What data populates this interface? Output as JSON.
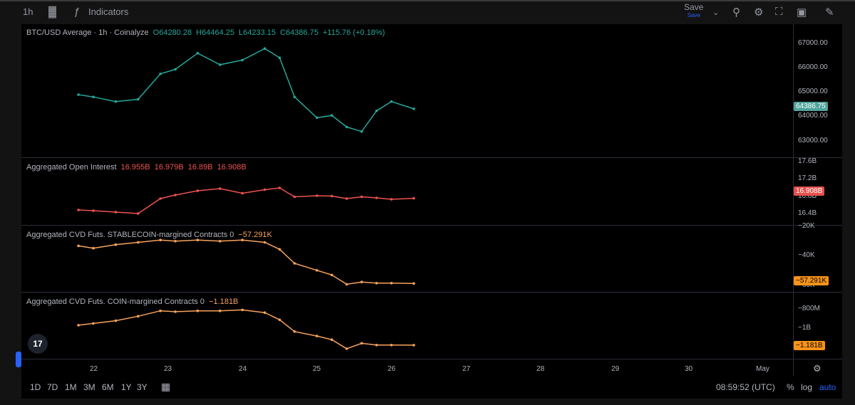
{
  "toolbar": {
    "interval": "1h",
    "indicators_label": "Indicators",
    "save_label": "Save",
    "save_sub": "Save"
  },
  "panels": {
    "price": {
      "title": "BTC/USD Average · 1h · Coinalyze",
      "o": "O64280.28",
      "h": "H64464.25",
      "l": "L64233.15",
      "c": "C64386.75",
      "chg": "+115.76 (+0.18%)",
      "last_tag": "64386.75",
      "ticks": [
        "67000.00",
        "66000.00",
        "65000.00",
        "64000.00",
        "63000.00"
      ]
    },
    "oi": {
      "title": "Aggregated Open Interest",
      "o": "16.955B",
      "h": "16.979B",
      "l": "16.89B",
      "c": "16.908B",
      "last_tag": "16.908B",
      "ticks": [
        "17.6B",
        "17.2B",
        "16.8B",
        "16.4B"
      ]
    },
    "cvd_stable": {
      "title": "Aggregated CVD Futs. STABLECOIN-margined Contracts 0",
      "value": "−57.291K",
      "last_tag": "−57.291K",
      "ticks": [
        "−20K",
        "−40K",
        "−60K"
      ]
    },
    "cvd_coin": {
      "title": "Aggregated CVD Futs. COIN-margined Contracts 0",
      "value": "−1.181B",
      "last_tag": "−1.181B",
      "ticks": [
        "−800M",
        "−1B"
      ]
    }
  },
  "xaxis": [
    "22",
    "23",
    "24",
    "25",
    "26",
    "27",
    "28",
    "29",
    "30",
    "May"
  ],
  "bottom": {
    "ranges": [
      "1D",
      "7D",
      "1M",
      "3M",
      "6M",
      "1Y",
      "3Y"
    ],
    "time": "08:59:52 (UTC)",
    "pct": "%",
    "log": "log",
    "auto": "auto"
  },
  "logo_text": "17",
  "colors": {
    "up": "#26a69a",
    "down": "#ef5350",
    "cvd": "#f7a35c",
    "price_tag": "#4fa39a",
    "oi_tag": "#e5514d",
    "cvd_tag": "#f7931a"
  },
  "chart_data": [
    {
      "type": "line",
      "title": "BTC/USD Average · 1h · Coinalyze",
      "x": [
        "21.8",
        "22.0",
        "22.3",
        "22.6",
        "22.9",
        "23.1",
        "23.4",
        "23.7",
        "24.0",
        "24.3",
        "24.5",
        "24.7",
        "25.0",
        "25.2",
        "25.4",
        "25.6",
        "25.8",
        "26.0",
        "26.3"
      ],
      "series": [
        {
          "values": [
            65000,
            64900,
            64700,
            64800,
            65900,
            66100,
            66800,
            66300,
            66500,
            67000,
            66600,
            64900,
            64000,
            64100,
            63600,
            63400,
            64300,
            64700,
            64386.75
          ]
        }
      ],
      "ylim": [
        62500,
        67500
      ]
    },
    {
      "type": "line",
      "title": "Aggregated Open Interest",
      "x": [
        "21.8",
        "22.0",
        "22.3",
        "22.6",
        "22.9",
        "23.1",
        "23.4",
        "23.7",
        "24.0",
        "24.3",
        "24.5",
        "24.7",
        "25.0",
        "25.2",
        "25.4",
        "25.6",
        "25.8",
        "26.0",
        "26.3"
      ],
      "series": [
        {
          "values": [
            16.58,
            16.56,
            16.52,
            16.48,
            16.9,
            17.0,
            17.12,
            17.18,
            17.05,
            17.15,
            17.2,
            16.95,
            16.98,
            16.97,
            16.9,
            16.95,
            16.92,
            16.88,
            16.908
          ]
        }
      ],
      "ylim": [
        16.3,
        17.7
      ]
    },
    {
      "type": "line",
      "title": "Aggregated CVD Futs. STABLECOIN-margined Contracts 0",
      "x": [
        "21.8",
        "22.0",
        "22.3",
        "22.6",
        "22.9",
        "23.1",
        "23.4",
        "23.7",
        "24.0",
        "24.3",
        "24.5",
        "24.7",
        "25.0",
        "25.2",
        "25.4",
        "25.6",
        "25.8",
        "26.0",
        "26.3"
      ],
      "series": [
        {
          "values": [
            -25,
            -27,
            -24,
            -22,
            -20,
            -21,
            -20,
            -21,
            -20,
            -22,
            -28,
            -40,
            -46,
            -50,
            -58,
            -56,
            -57,
            -57,
            -57.291
          ]
        }
      ],
      "ylim": [
        -62,
        -15
      ]
    },
    {
      "type": "line",
      "title": "Aggregated CVD Futs. COIN-margined Contracts 0",
      "x": [
        "21.8",
        "22.0",
        "22.3",
        "22.6",
        "22.9",
        "23.1",
        "23.4",
        "23.7",
        "24.0",
        "24.3",
        "24.5",
        "24.7",
        "25.0",
        "25.2",
        "25.4",
        "25.6",
        "25.8",
        "26.0",
        "26.3"
      ],
      "series": [
        {
          "values": [
            -0.96,
            -0.94,
            -0.91,
            -0.86,
            -0.8,
            -0.81,
            -0.8,
            -0.8,
            -0.79,
            -0.82,
            -0.9,
            -1.03,
            -1.08,
            -1.12,
            -1.22,
            -1.16,
            -1.18,
            -1.18,
            -1.181
          ]
        }
      ],
      "ylim": [
        -1.3,
        -0.7
      ]
    }
  ]
}
